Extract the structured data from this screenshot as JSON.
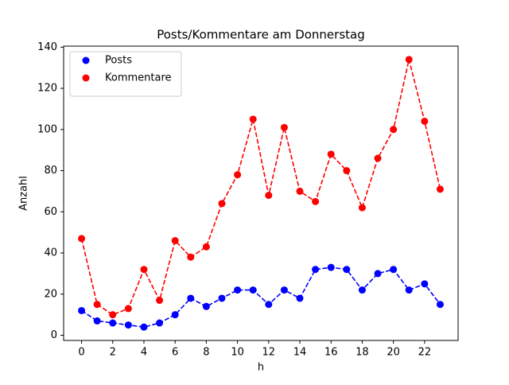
{
  "chart_data": {
    "type": "line",
    "title": "Posts/Kommentare am Donnerstag",
    "xlabel": "h",
    "ylabel": "Anzahl",
    "x": [
      0,
      1,
      2,
      3,
      4,
      5,
      6,
      7,
      8,
      9,
      10,
      11,
      12,
      13,
      14,
      15,
      16,
      17,
      18,
      19,
      20,
      21,
      22,
      23
    ],
    "series": [
      {
        "name": "Posts",
        "color": "#0000ff",
        "values": [
          12,
          7,
          6,
          5,
          4,
          6,
          10,
          18,
          14,
          18,
          22,
          22,
          15,
          22,
          18,
          32,
          33,
          32,
          22,
          30,
          32,
          22,
          25,
          15
        ]
      },
      {
        "name": "Kommentare",
        "color": "#ff0000",
        "values": [
          47,
          15,
          10,
          13,
          32,
          17,
          46,
          38,
          43,
          64,
          78,
          105,
          68,
          101,
          70,
          65,
          88,
          80,
          62,
          86,
          100,
          134,
          104,
          71
        ]
      }
    ],
    "xlim": [
      -1.15,
      24.15
    ],
    "xticks": [
      0,
      2,
      4,
      6,
      8,
      10,
      12,
      14,
      16,
      18,
      20,
      22
    ],
    "ylim": [
      -2.5,
      140.5
    ],
    "yticks": [
      0,
      20,
      40,
      60,
      80,
      100,
      120,
      140
    ],
    "legend": "upper left"
  }
}
